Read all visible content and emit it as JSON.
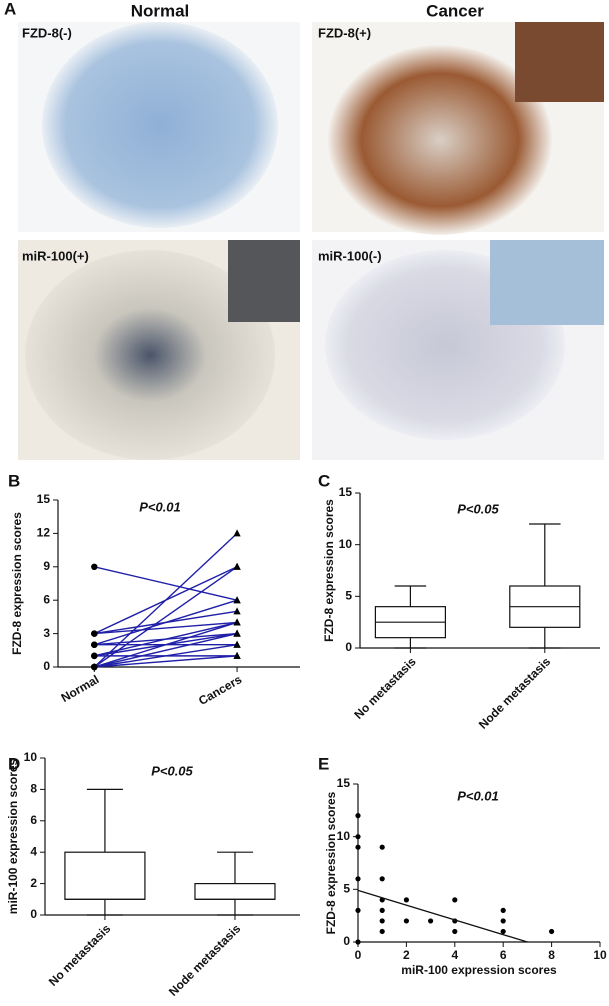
{
  "panel_a": {
    "label": "A",
    "columns": [
      "Normal",
      "Cancer"
    ],
    "images": [
      "FZD-8(-)",
      "FZD-8(+)",
      "miR-100(+)",
      "miR-100(-)"
    ]
  },
  "chart_data": [
    {
      "type": "slope",
      "label": "B",
      "y_label": "FZD-8 expression scores",
      "annotation": "P<0.01",
      "categories": [
        "Normal",
        "Cancers"
      ],
      "color": "#1f1fa8",
      "pairs": [
        [
          9,
          6
        ],
        [
          0,
          12
        ],
        [
          0,
          9
        ],
        [
          3,
          9
        ],
        [
          2,
          6
        ],
        [
          1,
          4
        ],
        [
          0,
          4
        ],
        [
          3,
          4
        ],
        [
          0,
          3
        ],
        [
          2,
          3
        ],
        [
          0,
          2
        ],
        [
          1,
          1
        ],
        [
          2,
          2
        ],
        [
          0,
          1
        ],
        [
          3,
          5
        ],
        [
          1,
          3
        ]
      ],
      "ylim": [
        0,
        15
      ],
      "yticks": [
        0,
        3,
        6,
        9,
        12,
        15
      ]
    },
    {
      "type": "box",
      "label": "C",
      "y_label": "FZD-8 expression scores",
      "annotation": "P<0.05",
      "categories": [
        "No metastasis",
        "Node metastasis"
      ],
      "boxes": [
        {
          "min": 0,
          "q1": 1,
          "median": 2.5,
          "q3": 4,
          "max": 6
        },
        {
          "min": 0,
          "q1": 2,
          "median": 4,
          "q3": 6,
          "max": 12
        }
      ],
      "ylim": [
        0,
        15
      ],
      "yticks": [
        0,
        5,
        10,
        15
      ]
    },
    {
      "type": "box",
      "label": "D",
      "y_label": "miR-100 expression scores",
      "annotation": "P<0.05",
      "categories": [
        "No metastasis",
        "Node metastasis"
      ],
      "boxes": [
        {
          "min": 0,
          "q1": 1,
          "median": 1,
          "q3": 4,
          "max": 8
        },
        {
          "min": 0,
          "q1": 1,
          "median": 1,
          "q3": 2,
          "max": 4
        }
      ],
      "ylim": [
        0,
        10
      ],
      "yticks": [
        0,
        2,
        4,
        6,
        8,
        10
      ]
    },
    {
      "type": "scatter",
      "label": "E",
      "x_label": "miR-100 expression scores",
      "y_label": "FZD-8 expression scores",
      "annotation": "P<0.01",
      "x": [
        0,
        0,
        0,
        0,
        0,
        0,
        1,
        1,
        1,
        1,
        1,
        1,
        2,
        2,
        3,
        4,
        4,
        4,
        6,
        6,
        6,
        8
      ],
      "values": [
        12,
        10,
        9,
        6,
        3,
        0,
        9,
        6,
        4,
        3,
        2,
        1,
        4,
        2,
        2,
        4,
        2,
        1,
        3,
        2,
        1,
        1
      ],
      "fit": {
        "x": [
          0,
          7
        ],
        "values": [
          4.9,
          0
        ]
      },
      "xlim": [
        0,
        10
      ],
      "xticks": [
        0,
        2,
        4,
        6,
        8,
        10
      ],
      "ylim": [
        0,
        15
      ],
      "yticks": [
        0,
        5,
        10,
        15
      ]
    }
  ]
}
